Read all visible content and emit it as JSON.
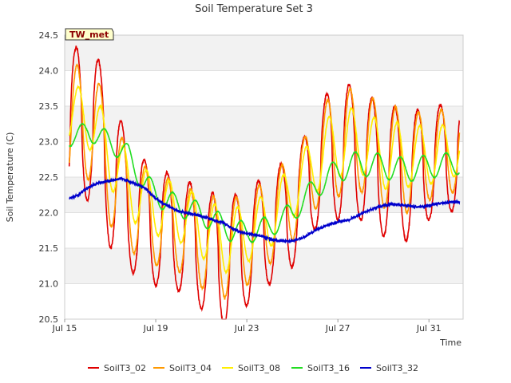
{
  "chart_data": {
    "type": "line",
    "title": "Soil Temperature Set 3",
    "xlabel": "Time",
    "ylabel": "Soil Temperature (C)",
    "badge": "TW_met",
    "ylim": [
      20.5,
      24.5
    ],
    "yticks": [
      "20.5",
      "21.0",
      "21.5",
      "22.0",
      "22.5",
      "23.0",
      "23.5",
      "24.0",
      "24.5"
    ],
    "xlim_days": [
      15,
      32.5
    ],
    "xticks": [
      {
        "day": 15,
        "label": "Jul 15"
      },
      {
        "day": 19,
        "label": "Jul 19"
      },
      {
        "day": 23,
        "label": "Jul 23"
      },
      {
        "day": 27,
        "label": "Jul 27"
      },
      {
        "day": 31,
        "label": "Jul 31"
      }
    ],
    "background_bands": true,
    "legend_position": "bottom",
    "series": [
      {
        "name": "SoilT3_02",
        "color": "#e00000",
        "amplitude_scale": 1.0,
        "sharp": 1.6,
        "centers": [
          [
            15.2,
            23.2
          ],
          [
            16.2,
            23.3
          ],
          [
            17.0,
            22.6
          ],
          [
            18.0,
            22.0
          ],
          [
            19.0,
            21.8
          ],
          [
            20.0,
            21.7
          ],
          [
            21.0,
            21.5
          ],
          [
            22.0,
            21.3
          ],
          [
            23.0,
            21.5
          ],
          [
            24.0,
            21.8
          ],
          [
            25.0,
            22.0
          ],
          [
            26.0,
            22.6
          ],
          [
            27.0,
            22.9
          ],
          [
            28.0,
            22.8
          ],
          [
            29.0,
            22.6
          ],
          [
            30.0,
            22.5
          ],
          [
            31.0,
            22.7
          ],
          [
            32.3,
            22.8
          ]
        ],
        "amps": [
          [
            15.2,
            1.1
          ],
          [
            17.0,
            1.1
          ],
          [
            18.0,
            0.85
          ],
          [
            20.0,
            0.8
          ],
          [
            22.0,
            0.9
          ],
          [
            23.0,
            0.8
          ],
          [
            24.0,
            0.8
          ],
          [
            25.5,
            0.75
          ],
          [
            27.0,
            1.0
          ],
          [
            28.0,
            0.9
          ],
          [
            29.5,
            0.95
          ],
          [
            31.0,
            0.8
          ],
          [
            32.3,
            0.75
          ]
        ]
      },
      {
        "name": "SoilT3_04",
        "color": "#ff9900",
        "amplitude_scale": 0.78,
        "sharp": 1.2,
        "lag": 0.04,
        "centers": [
          [
            15.2,
            23.2
          ],
          [
            16.2,
            23.3
          ],
          [
            17.0,
            22.6
          ],
          [
            18.0,
            22.1
          ],
          [
            19.0,
            21.9
          ],
          [
            20.0,
            21.8
          ],
          [
            21.0,
            21.6
          ],
          [
            22.0,
            21.5
          ],
          [
            23.0,
            21.6
          ],
          [
            24.0,
            21.9
          ],
          [
            25.0,
            22.2
          ],
          [
            26.0,
            22.7
          ],
          [
            27.0,
            23.0
          ],
          [
            28.0,
            23.0
          ],
          [
            29.0,
            22.8
          ],
          [
            30.0,
            22.7
          ],
          [
            31.0,
            22.8
          ],
          [
            32.3,
            22.9
          ]
        ],
        "amps": [
          [
            15.2,
            1.1
          ],
          [
            17.0,
            1.0
          ],
          [
            18.0,
            0.85
          ],
          [
            20.0,
            0.8
          ],
          [
            22.0,
            0.9
          ],
          [
            23.0,
            0.8
          ],
          [
            24.0,
            0.8
          ],
          [
            25.5,
            0.75
          ],
          [
            27.0,
            1.0
          ],
          [
            28.0,
            0.9
          ],
          [
            29.5,
            0.95
          ],
          [
            31.0,
            0.8
          ],
          [
            32.3,
            0.75
          ]
        ]
      },
      {
        "name": "SoilT3_08",
        "color": "#ffee00",
        "amplitude_scale": 0.5,
        "sharp": 1.0,
        "lag": 0.1,
        "centers": [
          [
            15.2,
            23.4
          ],
          [
            16.2,
            23.3
          ],
          [
            17.0,
            22.8
          ],
          [
            18.0,
            22.3
          ],
          [
            19.0,
            22.1
          ],
          [
            20.0,
            22.0
          ],
          [
            21.0,
            21.8
          ],
          [
            22.0,
            21.6
          ],
          [
            23.0,
            21.7
          ],
          [
            24.0,
            21.9
          ],
          [
            25.0,
            22.3
          ],
          [
            26.0,
            22.7
          ],
          [
            27.0,
            23.0
          ],
          [
            28.0,
            23.0
          ],
          [
            29.0,
            22.8
          ],
          [
            30.0,
            22.8
          ],
          [
            31.0,
            22.8
          ],
          [
            32.3,
            22.9
          ]
        ],
        "amps": [
          [
            15.2,
            0.8
          ],
          [
            17.0,
            0.9
          ],
          [
            18.0,
            0.85
          ],
          [
            20.0,
            0.8
          ],
          [
            22.0,
            0.9
          ],
          [
            23.0,
            0.8
          ],
          [
            24.0,
            0.8
          ],
          [
            25.5,
            0.75
          ],
          [
            27.0,
            1.0
          ],
          [
            28.0,
            0.9
          ],
          [
            29.5,
            0.95
          ],
          [
            31.0,
            0.8
          ],
          [
            32.3,
            0.75
          ]
        ]
      },
      {
        "name": "SoilT3_16",
        "color": "#22dd22",
        "amplitude_scale": 0.2,
        "sharp": 1.0,
        "lag": 0.25,
        "centers": [
          [
            15.2,
            23.05
          ],
          [
            16.0,
            23.15
          ],
          [
            17.0,
            23.0
          ],
          [
            17.8,
            22.8
          ],
          [
            18.5,
            22.4
          ],
          [
            19.5,
            22.15
          ],
          [
            20.5,
            22.05
          ],
          [
            21.5,
            21.9
          ],
          [
            22.3,
            21.75
          ],
          [
            23.0,
            21.72
          ],
          [
            24.0,
            21.8
          ],
          [
            25.0,
            22.0
          ],
          [
            26.0,
            22.35
          ],
          [
            27.0,
            22.6
          ],
          [
            28.0,
            22.7
          ],
          [
            29.0,
            22.65
          ],
          [
            30.0,
            22.6
          ],
          [
            31.0,
            22.65
          ],
          [
            32.3,
            22.7
          ]
        ],
        "amps": [
          [
            15.2,
            0.6
          ],
          [
            18.0,
            0.8
          ],
          [
            22.0,
            0.8
          ],
          [
            25.0,
            0.75
          ],
          [
            28.0,
            0.9
          ],
          [
            32.3,
            0.8
          ]
        ]
      }
    ],
    "series_smooth": {
      "name": "SoilT3_32",
      "color": "#0000cc",
      "points": [
        [
          15.2,
          22.2
        ],
        [
          15.6,
          22.25
        ],
        [
          15.8,
          22.3
        ],
        [
          16.0,
          22.35
        ],
        [
          16.5,
          22.42
        ],
        [
          17.0,
          22.45
        ],
        [
          17.5,
          22.48
        ],
        [
          18.0,
          22.42
        ],
        [
          18.5,
          22.35
        ],
        [
          19.0,
          22.2
        ],
        [
          19.5,
          22.1
        ],
        [
          20.0,
          22.02
        ],
        [
          21.0,
          21.95
        ],
        [
          22.0,
          21.85
        ],
        [
          22.5,
          21.75
        ],
        [
          23.0,
          21.7
        ],
        [
          23.5,
          21.68
        ],
        [
          24.0,
          21.63
        ],
        [
          24.5,
          21.6
        ],
        [
          25.0,
          21.6
        ],
        [
          25.5,
          21.65
        ],
        [
          26.0,
          21.75
        ],
        [
          26.5,
          21.82
        ],
        [
          27.0,
          21.87
        ],
        [
          27.5,
          21.9
        ],
        [
          28.0,
          21.98
        ],
        [
          28.5,
          22.05
        ],
        [
          29.0,
          22.1
        ],
        [
          29.5,
          22.12
        ],
        [
          30.0,
          22.1
        ],
        [
          30.5,
          22.08
        ],
        [
          31.0,
          22.1
        ],
        [
          31.5,
          22.13
        ],
        [
          32.0,
          22.15
        ],
        [
          32.3,
          22.15
        ]
      ]
    }
  }
}
